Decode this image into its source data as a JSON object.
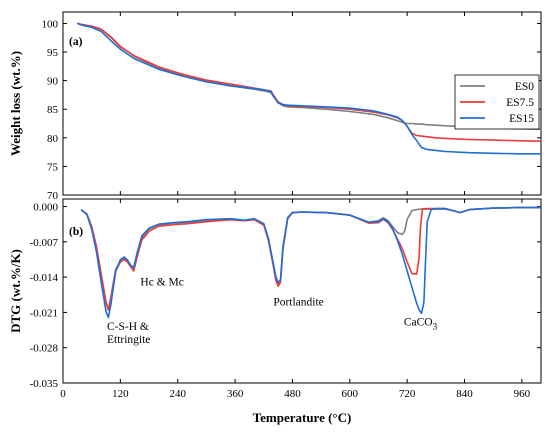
{
  "chart_data": {
    "type": "line",
    "x_label": "Temperature (°C)",
    "x_ticks": [
      0,
      120,
      240,
      360,
      480,
      600,
      720,
      840,
      960
    ],
    "xlim": [
      0,
      1000
    ],
    "series_names": [
      "ES0",
      "ES7.5",
      "ES15"
    ],
    "colors": {
      "ES0": "#7f7f7f",
      "ES7.5": "#ee3a3a",
      "ES15": "#1f6fd6"
    },
    "panels": [
      {
        "tag": "(a)",
        "y_label": "Weight loss (wt.%)",
        "ylim": [
          70,
          102
        ],
        "y_ticks": [
          70,
          75,
          80,
          85,
          90,
          95,
          100
        ],
        "legend_position": "right",
        "series": [
          {
            "name": "ES0",
            "x": [
              30,
              40,
              60,
              80,
              100,
              120,
              150,
              200,
              250,
              300,
              350,
              400,
              420,
              435,
              440,
              450,
              460,
              470,
              500,
              550,
              600,
              650,
              680,
              700,
              710,
              720,
              730,
              740,
              750,
              760,
              780,
              800,
              850,
              900,
              950,
              1000
            ],
            "y": [
              100,
              99.8,
              99.5,
              99,
              97.7,
              96,
              94.2,
              92.2,
              90.9,
              89.9,
              89.1,
              88.5,
              88.2,
              87.9,
              87.3,
              86.2,
              85.6,
              85.4,
              85.3,
              85.0,
              84.6,
              84.1,
              83.5,
              83.0,
              82.7,
              82.5,
              82.5,
              82.4,
              82.4,
              82.3,
              82.2,
              82.1,
              81.9,
              81.7,
              81.6,
              81.5
            ]
          },
          {
            "name": "ES7.5",
            "x": [
              30,
              40,
              60,
              80,
              100,
              120,
              150,
              200,
              250,
              300,
              350,
              400,
              420,
              435,
              440,
              450,
              460,
              470,
              500,
              550,
              600,
              650,
              680,
              700,
              710,
              720,
              730,
              740,
              750,
              760,
              780,
              800,
              850,
              900,
              950,
              1000
            ],
            "y": [
              100,
              99.8,
              99.5,
              99,
              97.6,
              95.9,
              94.3,
              92.4,
              91.1,
              90.1,
              89.4,
              88.7,
              88.4,
              88.2,
              87.5,
              86.3,
              85.8,
              85.6,
              85.5,
              85.3,
              85.0,
              84.5,
              84.0,
              83.5,
              83.0,
              82.0,
              80.8,
              80.4,
              80.3,
              80.2,
              80.0,
              79.9,
              79.7,
              79.6,
              79.5,
              79.4
            ]
          },
          {
            "name": "ES15",
            "x": [
              30,
              40,
              60,
              80,
              100,
              120,
              150,
              200,
              250,
              300,
              350,
              400,
              420,
              435,
              440,
              450,
              460,
              470,
              500,
              550,
              600,
              650,
              680,
              700,
              710,
              720,
              730,
              740,
              750,
              760,
              780,
              800,
              850,
              900,
              950,
              1000
            ],
            "y": [
              100,
              99.7,
              99.3,
              98.6,
              97,
              95.5,
              93.8,
              92.0,
              90.8,
              89.8,
              89.1,
              88.6,
              88.4,
              88.1,
              87.3,
              86.1,
              85.8,
              85.7,
              85.6,
              85.4,
              85.2,
              84.7,
              84.1,
              83.6,
              83.0,
              82.0,
              80.6,
              79.5,
              78.3,
              78.0,
              77.8,
              77.6,
              77.4,
              77.3,
              77.2,
              77.2
            ]
          }
        ]
      },
      {
        "tag": "(b)",
        "y_label": "DTG (wt.%/K)",
        "ylim": [
          -0.035,
          0.0015
        ],
        "y_ticks": [
          "0.000",
          "-0.007",
          "-0.014",
          "-0.021",
          "-0.028",
          "-0.035"
        ],
        "y_tick_values": [
          0,
          -0.007,
          -0.014,
          -0.021,
          -0.028,
          -0.035
        ],
        "annotations": [
          {
            "lines": [
              "C-S-H &",
              "Ettringite"
            ],
            "x": 92,
            "y": -0.0245
          },
          {
            "lines": [
              "Hc & Mc"
            ],
            "x": 162,
            "y": -0.0157
          },
          {
            "lines": [
              "Portlandite"
            ],
            "x": 440,
            "y": -0.0196
          },
          {
            "lines": [
              "CaCO",
              "3"
            ],
            "x": 713,
            "y": -0.0236
          }
        ],
        "series": [
          {
            "name": "ES0",
            "x": [
              38,
              50,
              60,
              70,
              80,
              90,
              95,
              100,
              110,
              120,
              128,
              135,
              142,
              148,
              155,
              165,
              180,
              200,
              230,
              260,
              300,
              350,
              380,
              400,
              420,
              430,
              440,
              445,
              450,
              455,
              460,
              470,
              480,
              500,
              550,
              600,
              640,
              660,
              670,
              680,
              690,
              700,
              710,
              715,
              720,
              730,
              740,
              750,
              760,
              780,
              800,
              820,
              830,
              850,
              900,
              950,
              1000
            ],
            "y": [
              -0.0006,
              -0.0015,
              -0.004,
              -0.008,
              -0.0135,
              -0.019,
              -0.0205,
              -0.018,
              -0.0125,
              -0.0107,
              -0.0103,
              -0.0108,
              -0.0118,
              -0.012,
              -0.0095,
              -0.0062,
              -0.0045,
              -0.0036,
              -0.0033,
              -0.0031,
              -0.0027,
              -0.0025,
              -0.0028,
              -0.0025,
              -0.0035,
              -0.0065,
              -0.0115,
              -0.014,
              -0.0155,
              -0.0148,
              -0.0082,
              -0.0022,
              -0.0012,
              -0.0011,
              -0.0012,
              -0.0017,
              -0.0031,
              -0.0028,
              -0.0022,
              -0.0028,
              -0.004,
              -0.0052,
              -0.0055,
              -0.0048,
              -0.0025,
              -0.0008,
              -0.0006,
              -0.0005,
              -0.0005,
              -0.0005,
              -0.0005,
              -0.0009,
              -0.0012,
              -0.0006,
              -0.0003,
              -0.0002,
              -0.0002
            ]
          },
          {
            "name": "ES7.5",
            "x": [
              38,
              50,
              60,
              70,
              80,
              90,
              95,
              100,
              110,
              120,
              128,
              135,
              142,
              148,
              155,
              165,
              180,
              200,
              230,
              260,
              300,
              350,
              380,
              400,
              420,
              430,
              440,
              445,
              450,
              455,
              460,
              470,
              480,
              500,
              550,
              600,
              640,
              660,
              670,
              680,
              690,
              700,
              710,
              720,
              730,
              740,
              745,
              748,
              752,
              760,
              780,
              800,
              820,
              830,
              850,
              900,
              950,
              1000
            ],
            "y": [
              -0.0006,
              -0.0015,
              -0.004,
              -0.008,
              -0.0135,
              -0.019,
              -0.0205,
              -0.0185,
              -0.0128,
              -0.011,
              -0.0105,
              -0.011,
              -0.012,
              -0.0128,
              -0.01,
              -0.0066,
              -0.0049,
              -0.0039,
              -0.0036,
              -0.0034,
              -0.003,
              -0.0026,
              -0.0028,
              -0.0026,
              -0.0037,
              -0.0068,
              -0.0118,
              -0.0145,
              -0.0158,
              -0.015,
              -0.0085,
              -0.0024,
              -0.0012,
              -0.0011,
              -0.0012,
              -0.0017,
              -0.0033,
              -0.0032,
              -0.0025,
              -0.0032,
              -0.0046,
              -0.0065,
              -0.0084,
              -0.011,
              -0.0133,
              -0.0134,
              -0.01,
              -0.004,
              -0.0005,
              -0.0004,
              -0.0004,
              -0.0004,
              -0.0009,
              -0.0012,
              -0.0006,
              -0.0003,
              -0.0002,
              -0.0002
            ]
          },
          {
            "name": "ES15",
            "x": [
              38,
              50,
              60,
              70,
              80,
              90,
              95,
              100,
              110,
              120,
              128,
              135,
              142,
              148,
              155,
              165,
              180,
              200,
              230,
              260,
              300,
              350,
              380,
              400,
              420,
              430,
              440,
              445,
              450,
              455,
              460,
              470,
              480,
              500,
              550,
              600,
              640,
              660,
              670,
              680,
              690,
              700,
              710,
              720,
              730,
              740,
              745,
              750,
              755,
              758,
              762,
              770,
              780,
              800,
              820,
              830,
              850,
              900,
              950,
              1000
            ],
            "y": [
              -0.0006,
              -0.0016,
              -0.0045,
              -0.009,
              -0.015,
              -0.0208,
              -0.022,
              -0.0195,
              -0.013,
              -0.0105,
              -0.01,
              -0.0106,
              -0.0117,
              -0.0122,
              -0.0092,
              -0.0058,
              -0.0043,
              -0.0035,
              -0.0032,
              -0.003,
              -0.0026,
              -0.0024,
              -0.0027,
              -0.0024,
              -0.0034,
              -0.0064,
              -0.0113,
              -0.0138,
              -0.0151,
              -0.0145,
              -0.008,
              -0.0022,
              -0.0012,
              -0.0011,
              -0.0012,
              -0.0017,
              -0.0031,
              -0.003,
              -0.0024,
              -0.003,
              -0.0045,
              -0.0068,
              -0.0095,
              -0.0128,
              -0.016,
              -0.0192,
              -0.0205,
              -0.0212,
              -0.019,
              -0.012,
              -0.003,
              -0.0006,
              -0.0004,
              -0.0004,
              -0.0009,
              -0.0012,
              -0.0006,
              -0.0003,
              -0.0002,
              -0.0002
            ]
          }
        ]
      }
    ]
  }
}
